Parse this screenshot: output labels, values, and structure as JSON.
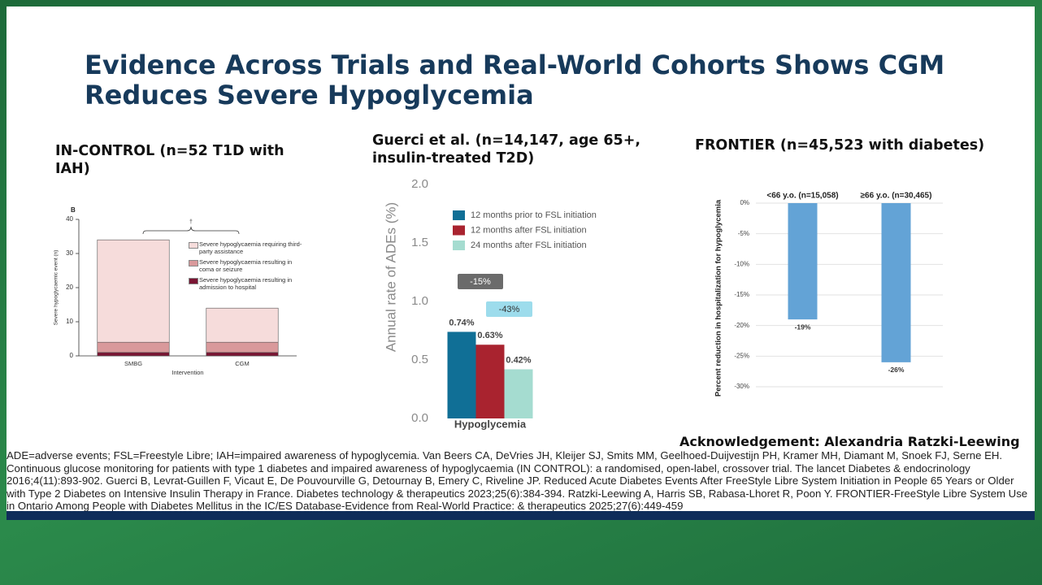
{
  "slide": {
    "title": "Evidence Across Trials and Real-World Cohorts Shows CGM Reduces Severe Hypoglycemia",
    "acknowledgement": "Acknowledgement: Alexandria Ratzki-Leewing",
    "footnote": "ADE=adverse events; FSL=Freestyle Libre; IAH=impaired awareness of hypoglycemia. Van Beers CA, DeVries JH, Kleijer SJ, Smits MM, Geelhoed-Duijvestijn PH, Kramer MH, Diamant M, Snoek FJ, Serne EH. Continuous glucose monitoring for patients with type 1 diabetes and impaired awareness of hypoglycaemia (IN CONTROL): a randomised, open-label, crossover trial. The lancet Diabetes & endocrinology 2016;4(11):893-902. Guerci B, Levrat-Guillen F, Vicaut E, De Pouvourville G, Detournay B, Emery C, Riveline JP. Reduced Acute Diabetes Events After FreeStyle Libre System Initiation in People 65 Years or Older with Type 2 Diabetes on Intensive Insulin Therapy in France. Diabetes technology & therapeutics 2023;25(6):384-394. Ratzki-Leewing A, Harris SB, Rabasa-Lhoret R, Poon Y. FRONTIER-FreeStyle Libre System Use in Ontario Among People with Diabetes Mellitus in the IC/ES Database-Evidence from Real-World Practice: & therapeutics 2025;27(6):449-459"
  },
  "chart_data": [
    {
      "type": "stacked_bar",
      "title": "IN-CONTROL (n=52 T1D with IAH)",
      "panel_label": "B",
      "annotation": "†",
      "x_label": "Intervention",
      "y_label": "Severe hypoglycaemic event (n)",
      "categories": [
        "SMBG",
        "CGM"
      ],
      "series": [
        {
          "name": "Severe hypoglycaemia requiring third-party assistance",
          "color": "#f6dcdb",
          "values": [
            30,
            10
          ]
        },
        {
          "name": "Severe hypoglycaemia resulting in coma or seizure",
          "color": "#d9999b",
          "values": [
            3,
            3
          ]
        },
        {
          "name": "Severe hypoglycaemia resulting in admission to hospital",
          "color": "#7a1533",
          "values": [
            1,
            1
          ]
        }
      ],
      "ylim": [
        0,
        40
      ],
      "yticks": [
        0,
        10,
        20,
        30,
        40
      ]
    },
    {
      "type": "grouped_bar",
      "title": "Guerci et al. (n=14,147, age 65+, insulin-treated T2D)",
      "y_label": "Annual rate of ADEs (%)",
      "categories": [
        "Hypoglycemia"
      ],
      "series": [
        {
          "name": "12 months prior to FSL initiation",
          "color": "#106f96",
          "values": [
            0.74
          ],
          "value_labels": [
            "0.74%"
          ]
        },
        {
          "name": "12 months after FSL initiation",
          "color": "#a9232f",
          "values": [
            0.63
          ],
          "value_labels": [
            "0.63%"
          ]
        },
        {
          "name": "24 months after FSL initiation",
          "color": "#a5dcd0",
          "values": [
            0.42
          ],
          "value_labels": [
            "0.42%"
          ]
        }
      ],
      "annotations": [
        {
          "text": "-15%",
          "color": "#6b6b6b"
        },
        {
          "text": "-43%",
          "color": "#9ddcec"
        }
      ],
      "ylim": [
        0,
        2.0
      ],
      "yticks": [
        {
          "value": 0,
          "label": "0.0"
        },
        {
          "value": 0.5,
          "label": "0.5"
        },
        {
          "value": 1,
          "label": "1.0"
        },
        {
          "value": 1.5,
          "label": "1.5"
        },
        {
          "value": 2,
          "label": "2.0"
        }
      ]
    },
    {
      "type": "bar",
      "title": "FRONTIER (n=45,523 with diabetes)",
      "y_label": "Percent reduction in hospitalization for hypoglycemia",
      "categories": [
        "<66 y.o. (n=15,058)",
        "≥66 y.o. (n=30,465)"
      ],
      "values": [
        -19,
        -26
      ],
      "value_labels": [
        "-19%",
        "-26%"
      ],
      "color": "#63a3d6",
      "grid": true,
      "ylim": [
        -30,
        0
      ],
      "yticks": [
        {
          "value": 0,
          "label": "0%"
        },
        {
          "value": -5,
          "label": "-5%"
        },
        {
          "value": -10,
          "label": "-10%"
        },
        {
          "value": -15,
          "label": "-15%"
        },
        {
          "value": -20,
          "label": "-20%"
        },
        {
          "value": -25,
          "label": "-25%"
        },
        {
          "value": -30,
          "label": "-30%"
        }
      ]
    }
  ]
}
